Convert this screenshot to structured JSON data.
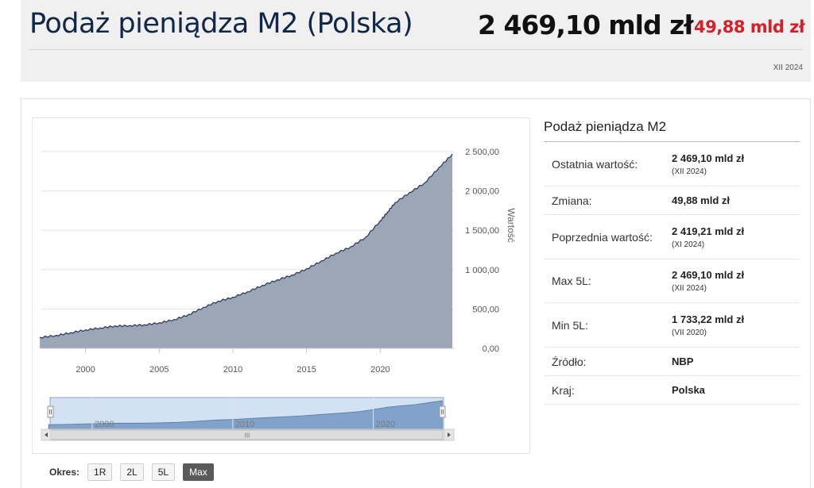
{
  "header": {
    "title": "Podaż pieniądza M2",
    "country": "(Polska)",
    "value": "2 469,10 mld zł",
    "change": "49,88 mld zł",
    "period": "XII 2024",
    "change_color": "#d5202a"
  },
  "chart_data": {
    "type": "area",
    "ylabel": "Wartość",
    "y_ticks": [
      "0,00",
      "500,00",
      "1 000,00",
      "1 500,00",
      "2 000,00",
      "2 500,00"
    ],
    "x_ticks": [
      "2000",
      "2005",
      "2010",
      "2015",
      "2020"
    ],
    "ylim": [
      0,
      2600
    ],
    "xlim": [
      1997,
      2025
    ],
    "grid": true,
    "fill_color": "#9ba6b7",
    "line_color": "#2c3f5e",
    "x": [
      1996.9,
      1998,
      1999,
      2000,
      2001,
      2002,
      2003,
      2004,
      2005,
      2006,
      2007,
      2008,
      2009,
      2010,
      2011,
      2012,
      2013,
      2014,
      2015,
      2016,
      2017,
      2018,
      2019,
      2020,
      2020.5,
      2021,
      2022,
      2023,
      2024,
      2024.9
    ],
    "y": [
      140,
      165,
      200,
      235,
      260,
      285,
      290,
      300,
      325,
      365,
      430,
      520,
      600,
      650,
      720,
      800,
      870,
      930,
      1010,
      1110,
      1210,
      1290,
      1410,
      1620,
      1733,
      1850,
      1980,
      2100,
      2300,
      2469
    ],
    "navigator_ticks": [
      "2000",
      "2010",
      "2020"
    ]
  },
  "scrollbar": {
    "grip": "III"
  },
  "okres": {
    "label": "Okres:",
    "buttons": [
      "1R",
      "2L",
      "5L",
      "Max"
    ],
    "active": "Max"
  },
  "side": {
    "title": "Podaż pieniądza M2",
    "rows": [
      {
        "label": "Ostatnia wartość:",
        "value": "2 469,10 mld zł",
        "sub": "(XII 2024)"
      },
      {
        "label": "Zmiana:",
        "value": "49,88 mld zł",
        "sub": ""
      },
      {
        "label": "Poprzednia wartość:",
        "value": "2 419,21 mld zł",
        "sub": "(XI 2024)"
      },
      {
        "label": "Max 5L:",
        "value": "2 469,10 mld zł",
        "sub": "(XII 2024)"
      },
      {
        "label": "Min 5L:",
        "value": "1 733,22 mld zł",
        "sub": "(VII 2020)"
      },
      {
        "label": "Źródło:",
        "value": "NBP",
        "sub": ""
      },
      {
        "label": "Kraj:",
        "value": "Polska",
        "sub": ""
      }
    ]
  }
}
